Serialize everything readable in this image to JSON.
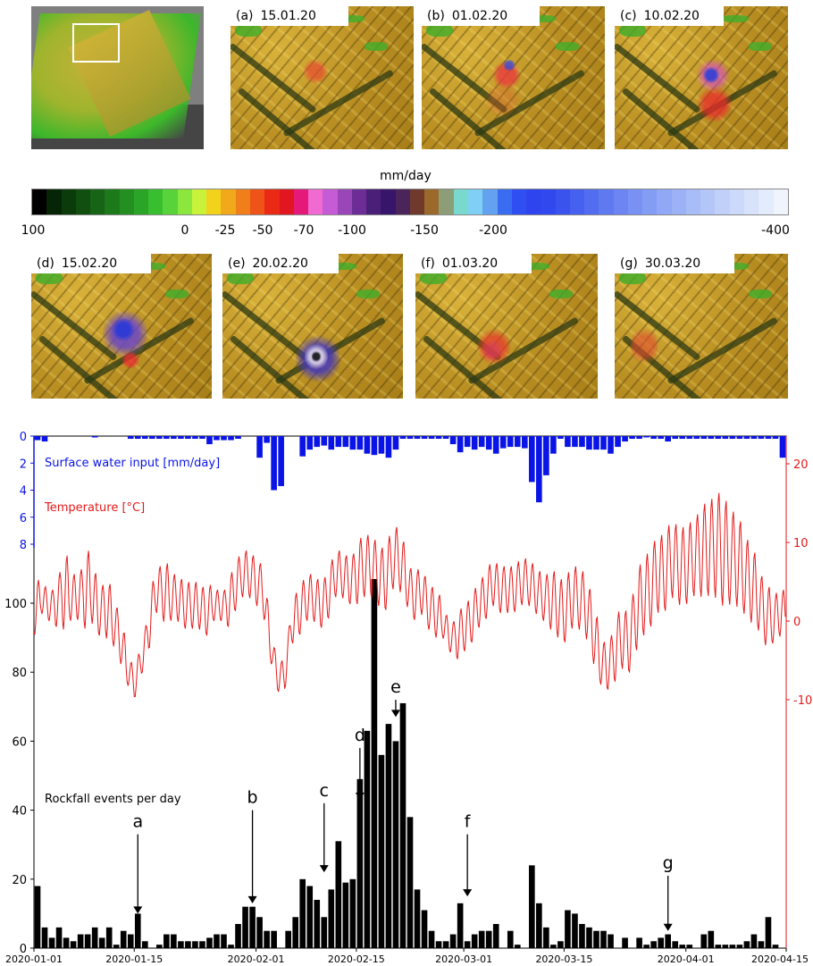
{
  "overview": {
    "name": "overview map"
  },
  "panels": [
    {
      "letter": "(a)",
      "date": "15.01.20"
    },
    {
      "letter": "(b)",
      "date": "01.02.20"
    },
    {
      "letter": "(c)",
      "date": "10.02.20"
    },
    {
      "letter": "(d)",
      "date": "15.02.20"
    },
    {
      "letter": "(e)",
      "date": "20.02.20"
    },
    {
      "letter": "(f)",
      "date": "01.03.20"
    },
    {
      "letter": "(g)",
      "date": "30.03.20"
    }
  ],
  "colorbar": {
    "unit": "mm/day",
    "tick_labels": [
      "100",
      "0",
      "-25",
      "-50",
      "-70",
      "-100",
      "-150",
      "-200",
      "-400"
    ],
    "colors": [
      "#000000",
      "#062406",
      "#0b3a0b",
      "#114f10",
      "#176416",
      "#1d7a1b",
      "#248f21",
      "#2ba527",
      "#39be2f",
      "#58d43a",
      "#8be63e",
      "#c9f23a",
      "#f3d21b",
      "#f2a81b",
      "#f07e1b",
      "#ee5318",
      "#ea2a14",
      "#e11621",
      "#e5197a",
      "#f06ad1",
      "#c65cd5",
      "#9947b8",
      "#6c2e96",
      "#4a1f78",
      "#36156a",
      "#4c245c",
      "#6f3a2c",
      "#9b6a2b",
      "#8d9d78",
      "#79d9cf",
      "#7fd0f4",
      "#63a2f0",
      "#3a6cf1",
      "#2f4ff2",
      "#2e44ef",
      "#3049ee",
      "#3a52ee",
      "#4660ef",
      "#536df0",
      "#5f79f1",
      "#6c85f2",
      "#7891f3",
      "#849df4",
      "#90a8f5",
      "#9cb2f6",
      "#a8bcf7",
      "#b4c6f8",
      "#c0d0f9",
      "#ccd9fa",
      "#d8e3fb",
      "#e3ecfc",
      "#eff4fd"
    ]
  },
  "chart_data": {
    "type": "bar",
    "x_tick_labels": [
      "2020-01-01",
      "2020-01-15",
      "2020-02-01",
      "2020-02-15",
      "2020-03-01",
      "2020-03-15",
      "2020-04-01",
      "2020-04-15"
    ],
    "x_range": [
      "2020-01-01",
      "2020-04-15"
    ],
    "rockfall": {
      "label": "Rockfall events per day",
      "color": "#000000",
      "y_ticks": [
        0,
        20,
        40,
        60,
        80,
        100
      ],
      "ylim": [
        0,
        108
      ],
      "values": [
        18,
        6,
        3,
        6,
        3,
        2,
        4,
        4,
        6,
        3,
        6,
        1,
        5,
        4,
        10,
        2,
        0,
        1,
        4,
        4,
        2,
        2,
        2,
        2,
        3,
        4,
        4,
        1,
        7,
        12,
        12,
        9,
        5,
        5,
        0,
        5,
        9,
        20,
        18,
        14,
        9,
        17,
        31,
        19,
        20,
        49,
        63,
        107,
        56,
        65,
        60,
        71,
        38,
        17,
        11,
        5,
        2,
        2,
        4,
        13,
        2,
        4,
        5,
        5,
        7,
        0,
        5,
        1,
        0,
        24,
        13,
        6,
        1,
        2,
        11,
        10,
        7,
        6,
        5,
        5,
        4,
        0,
        3,
        0,
        3,
        1,
        2,
        3,
        4,
        2,
        1,
        1,
        0,
        4,
        5,
        1,
        1,
        1,
        1,
        2,
        4,
        2,
        9,
        1
      ]
    },
    "water": {
      "label": "Surface water input [mm/day]",
      "color": "#0a14e6",
      "y_ticks": [
        0,
        2,
        4,
        6,
        8
      ],
      "y_inverted": true,
      "values": [
        0.3,
        0.4,
        0,
        0,
        0,
        0,
        0,
        0,
        0.1,
        0,
        0,
        0,
        0,
        0.2,
        0.2,
        0.2,
        0.2,
        0.2,
        0.2,
        0.2,
        0.2,
        0.2,
        0.2,
        0.2,
        0.6,
        0.3,
        0.3,
        0.3,
        0.2,
        0,
        0,
        1.6,
        0.5,
        4.0,
        3.7,
        0,
        0,
        1.5,
        1.0,
        0.8,
        0.7,
        1.0,
        0.8,
        0.8,
        1.0,
        1.0,
        1.3,
        1.4,
        1.3,
        1.6,
        1.0,
        0.2,
        0.2,
        0.2,
        0.2,
        0.2,
        0.2,
        0.2,
        0.6,
        1.2,
        0.8,
        1.0,
        0.8,
        1.0,
        1.3,
        0.9,
        0.8,
        0.8,
        0.9,
        3.4,
        4.9,
        2.9,
        1.3,
        0.2,
        0.8,
        0.8,
        0.8,
        1.0,
        1.0,
        1.0,
        1.3,
        0.8,
        0.4,
        0.2,
        0.2,
        0.1,
        0.2,
        0.2,
        0.4,
        0.2,
        0.2,
        0.2,
        0.2,
        0.2,
        0.2,
        0.2,
        0.2,
        0.2,
        0.2,
        0.2,
        0.2,
        0.2,
        0.2,
        0.2,
        1.6,
        0
      ]
    },
    "temperature": {
      "label": "Temperature [°C]",
      "color": "#e41a1a",
      "y_ticks": [
        20,
        10,
        0,
        -10
      ],
      "ylim": [
        -22,
        24
      ],
      "daily_mean": [
        1,
        3,
        2,
        2,
        4,
        3,
        3,
        4,
        4,
        1,
        2,
        0,
        -2,
        -6,
        -8,
        -5,
        -1,
        4,
        4,
        3,
        3,
        2,
        2,
        2,
        1,
        2,
        2,
        2,
        4,
        6,
        6,
        5,
        4,
        -3,
        -7,
        -7,
        0,
        1,
        3,
        3,
        2,
        3,
        6,
        6,
        5,
        6,
        7,
        7,
        6,
        5,
        8,
        8,
        5,
        3,
        4,
        2,
        1,
        0,
        -2,
        -2,
        -1,
        0,
        2,
        3,
        5,
        4,
        4,
        4,
        5,
        5,
        4,
        3,
        3,
        2,
        1,
        3,
        3,
        2,
        -1,
        -5,
        -6,
        -4,
        -2,
        -3,
        1,
        3,
        4,
        6,
        6,
        8,
        7,
        7,
        8,
        9,
        9,
        10,
        9,
        8,
        8,
        6,
        5,
        3,
        1,
        0,
        1
      ],
      "daily_range": [
        3,
        2,
        2,
        3,
        5,
        3,
        3,
        5,
        4,
        3,
        4,
        3,
        3,
        2,
        2,
        2,
        3,
        3,
        4,
        3,
        3,
        3,
        3,
        3,
        3,
        2,
        2,
        3,
        3,
        3,
        3,
        3,
        3,
        2,
        2,
        2,
        3,
        3,
        3,
        3,
        3,
        3,
        3,
        3,
        3,
        4,
        4,
        4,
        4,
        4,
        4,
        4,
        3,
        3,
        3,
        3,
        3,
        2,
        2,
        3,
        3,
        3,
        3,
        3,
        3,
        3,
        3,
        3,
        3,
        3,
        3,
        3,
        4,
        4,
        4,
        4,
        4,
        4,
        4,
        3,
        3,
        4,
        4,
        4,
        5,
        5,
        5,
        5,
        5,
        5,
        5,
        5,
        5,
        6,
        6,
        7,
        7,
        6,
        6,
        5,
        5,
        4,
        4,
        3,
        3
      ]
    },
    "event_markers": [
      {
        "label": "a",
        "day": 14,
        "tip_y": 10,
        "top_y": 33
      },
      {
        "label": "b",
        "day": 30,
        "tip_y": 13,
        "top_y": 40
      },
      {
        "label": "c",
        "day": 40,
        "tip_y": 22,
        "top_y": 42
      },
      {
        "label": "d",
        "day": 45,
        "tip_y": 43,
        "top_y": 58
      },
      {
        "label": "e",
        "day": 50,
        "tip_y": 67,
        "top_y": 72
      },
      {
        "label": "f",
        "day": 60,
        "tip_y": 15,
        "top_y": 33
      },
      {
        "label": "g",
        "day": 88,
        "tip_y": 5,
        "top_y": 21
      }
    ]
  }
}
